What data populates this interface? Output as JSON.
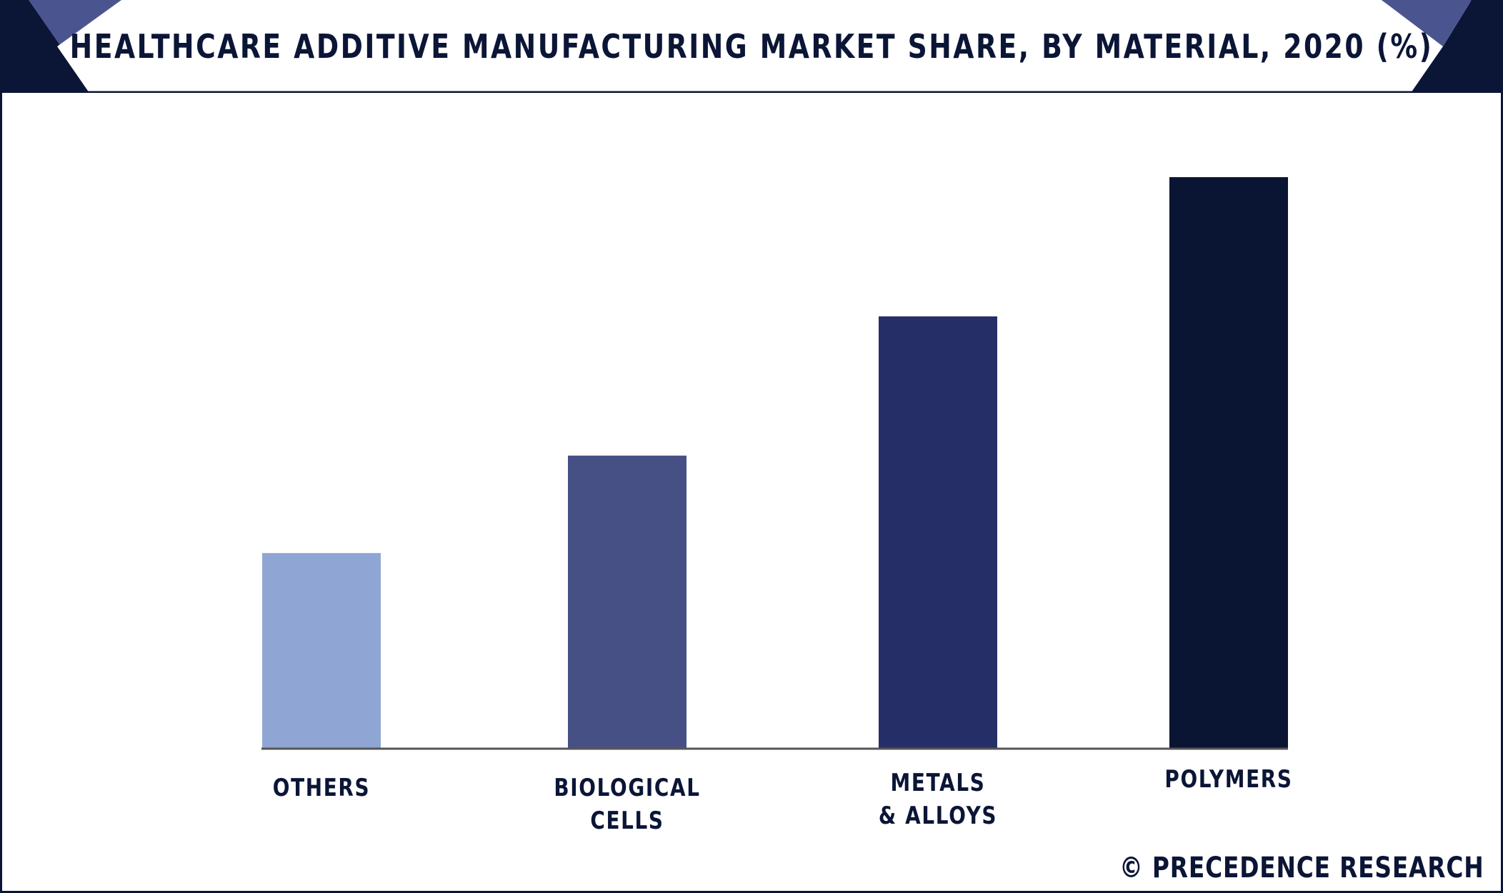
{
  "title": "HEALTHCARE ADDITIVE MANUFACTURING MARKET SHARE, BY MATERIAL, 2020 (%)",
  "footer": "© PRECEDENCE RESEARCH",
  "colors": {
    "frame": "#0b1536",
    "header_dark": "#0b1536",
    "header_accent": "#4a5590",
    "axis": "#555555"
  },
  "chart_data": {
    "type": "bar",
    "title": "HEALTHCARE ADDITIVE MANUFACTURING MARKET SHARE, BY MATERIAL, 2020 (%)",
    "xlabel": "",
    "ylabel": "",
    "categories": [
      "OTHERS",
      "BIOLOGICAL\nCELLS",
      "METALS\n& ALLOYS",
      "POLYMERS"
    ],
    "values": [
      14,
      21,
      31,
      41
    ],
    "ylim": [
      0,
      45
    ],
    "bar_colors": [
      "#8fa6d4",
      "#475085",
      "#252e66",
      "#0a1533"
    ],
    "grid": false,
    "legend": "none"
  }
}
